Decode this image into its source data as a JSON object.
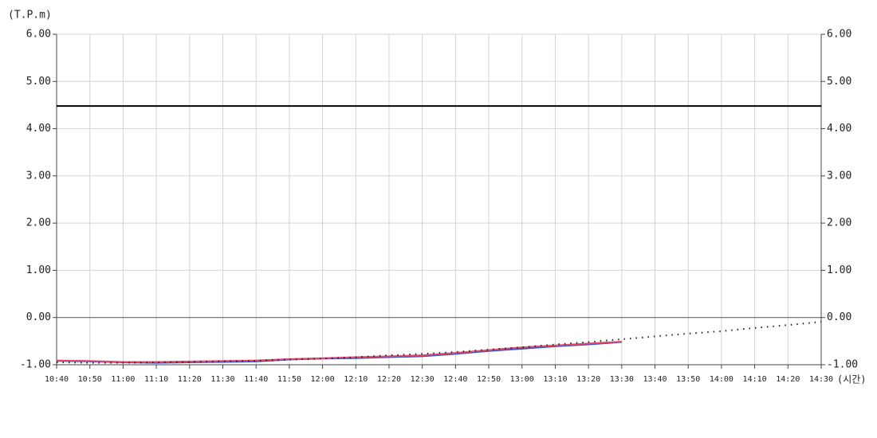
{
  "chart_data": {
    "type": "line",
    "y_label": "(T.P.m)",
    "x_label": "(시간)",
    "categories": [
      "10:40",
      "10:50",
      "11:00",
      "11:10",
      "11:20",
      "11:30",
      "11:40",
      "11:50",
      "12:00",
      "12:10",
      "12:20",
      "12:30",
      "12:40",
      "12:50",
      "13:00",
      "13:10",
      "13:20",
      "13:30",
      "13:40",
      "13:50",
      "14:00",
      "14:10",
      "14:20",
      "14:30"
    ],
    "series": [
      {
        "color": "#3355cc",
        "style": "solid",
        "values": [
          -0.92,
          -0.93,
          -0.95,
          -0.96,
          -0.95,
          -0.94,
          -0.93,
          -0.89,
          -0.87,
          -0.86,
          -0.84,
          -0.82,
          -0.77,
          -0.71,
          -0.66,
          -0.61,
          -0.57,
          -0.52,
          null,
          null,
          null,
          null,
          null,
          null
        ]
      },
      {
        "color": "#e8476a",
        "style": "solid",
        "values": [
          -0.91,
          -0.92,
          -0.94,
          -0.94,
          -0.93,
          -0.92,
          -0.91,
          -0.88,
          -0.86,
          -0.84,
          -0.82,
          -0.8,
          -0.75,
          -0.69,
          -0.63,
          -0.59,
          -0.55,
          -0.51,
          null,
          null,
          null,
          null,
          null,
          null
        ]
      },
      {
        "color": "#222222",
        "style": "dotted",
        "values": [
          -0.95,
          -0.96,
          -0.96,
          -0.95,
          -0.94,
          -0.93,
          -0.92,
          -0.89,
          -0.87,
          -0.84,
          -0.8,
          -0.77,
          -0.73,
          -0.68,
          -0.63,
          -0.57,
          -0.52,
          -0.46,
          -0.4,
          -0.34,
          -0.29,
          -0.22,
          -0.16,
          -0.09
        ]
      }
    ],
    "reference_line": {
      "value": 4.48,
      "color": "#000000"
    },
    "ylim": [
      -1,
      6
    ],
    "yticks": [
      {
        "value": -1,
        "label": "-1.00"
      },
      {
        "value": 0,
        "label": "0.00"
      },
      {
        "value": 1,
        "label": "1.00"
      },
      {
        "value": 2,
        "label": "2.00"
      },
      {
        "value": 3,
        "label": "3.00"
      },
      {
        "value": 4,
        "label": "4.00"
      },
      {
        "value": 5,
        "label": "5.00"
      },
      {
        "value": 6,
        "label": "6.00"
      }
    ],
    "y2lim": [
      -1,
      6
    ],
    "y2ticks": [
      {
        "value": -1,
        "label": "-1.00"
      },
      {
        "value": 0,
        "label": "0.00"
      },
      {
        "value": 1,
        "label": "1.00"
      },
      {
        "value": 2,
        "label": "2.00"
      },
      {
        "value": 3,
        "label": "3.00"
      },
      {
        "value": 4,
        "label": "4.00"
      },
      {
        "value": 5,
        "label": "5.00"
      },
      {
        "value": 6,
        "label": "6.00"
      }
    ],
    "grid": true
  }
}
